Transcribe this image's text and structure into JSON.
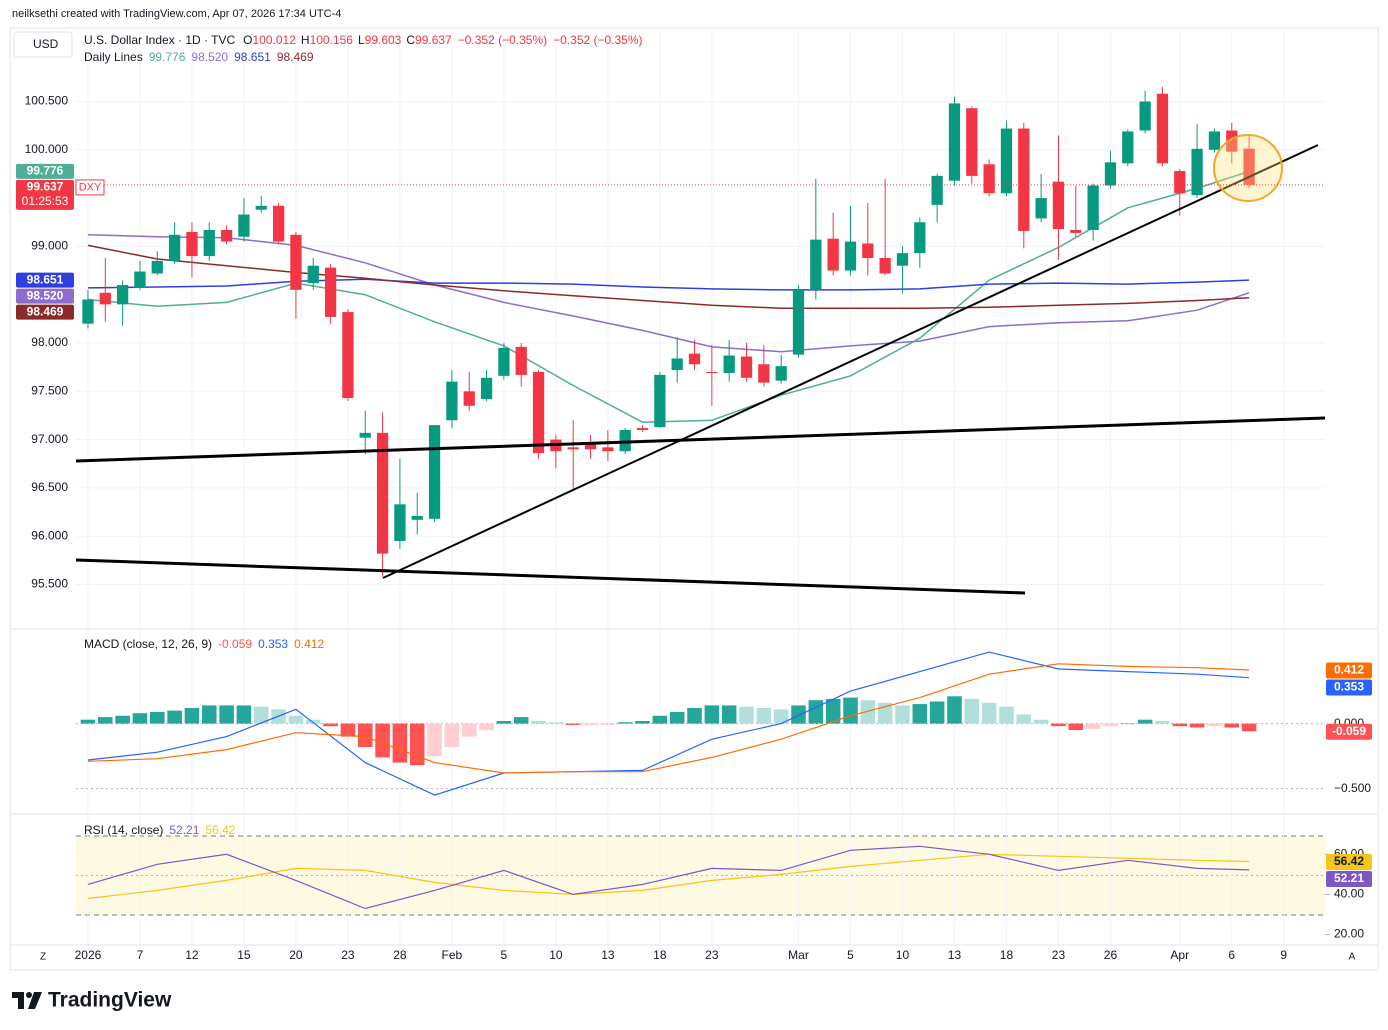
{
  "caption": "neilksethi created with TradingView.com, Apr 07, 2026 17:34 UTC-4",
  "brand": "TradingView",
  "scale_buttons": [
    "Z",
    "A"
  ],
  "chart_data": {
    "type": "candlestick",
    "currency": "USD",
    "title": "U.S. Dollar Index · 1D · TVC",
    "ohlc_letters": [
      "O",
      "H",
      "L",
      "C"
    ],
    "change": [
      "−0.352 (−0.35%)",
      "−0.352 (−0.35%)"
    ],
    "symbol": "DXY",
    "countdown": "01:25:53",
    "up_color": "#089981",
    "down_color": "#f23645",
    "grid": true,
    "xlim": [
      -0.69,
      71.38
    ],
    "xticks": [
      {
        "value": 0,
        "label": "2026"
      },
      {
        "value": 3,
        "label": "7"
      },
      {
        "value": 6,
        "label": "12"
      },
      {
        "value": 9,
        "label": "15"
      },
      {
        "value": 12,
        "label": "20"
      },
      {
        "value": 15,
        "label": "23"
      },
      {
        "value": 18,
        "label": "28"
      },
      {
        "value": 21,
        "label": "Feb"
      },
      {
        "value": 24,
        "label": "5"
      },
      {
        "value": 27,
        "label": "10"
      },
      {
        "value": 30,
        "label": "13"
      },
      {
        "value": 33,
        "label": "18"
      },
      {
        "value": 36,
        "label": "23"
      },
      {
        "value": 41,
        "label": "Mar"
      },
      {
        "value": 44,
        "label": "5"
      },
      {
        "value": 47,
        "label": "10"
      },
      {
        "value": 50,
        "label": "13"
      },
      {
        "value": 53,
        "label": "18"
      },
      {
        "value": 56,
        "label": "23"
      },
      {
        "value": 59,
        "label": "26"
      },
      {
        "value": 63,
        "label": "Apr"
      },
      {
        "value": 66,
        "label": "6"
      },
      {
        "value": 69,
        "label": "9"
      }
    ],
    "ylim": [
      95.05,
      101.24
    ],
    "yticks": [
      {
        "value": 100.5,
        "label": "100.500"
      },
      {
        "value": 100,
        "label": "100.000"
      },
      {
        "value": 99,
        "label": "99.000"
      },
      {
        "value": 98,
        "label": "98.000"
      },
      {
        "value": 97.5,
        "label": "97.500"
      },
      {
        "value": 97,
        "label": "97.000"
      },
      {
        "value": 96.5,
        "label": "96.500"
      },
      {
        "value": 96,
        "label": "96.000"
      },
      {
        "value": 95.5,
        "label": "95.500"
      }
    ],
    "candles": {
      "open": [
        98.2,
        98.52,
        98.4,
        98.57,
        98.72,
        98.85,
        99.15,
        98.9,
        99.17,
        99.1,
        99.38,
        99.42,
        99.12,
        98.62,
        98.78,
        98.32,
        97.02,
        97.07,
        95.95,
        96.17,
        96.18,
        97.2,
        97.5,
        97.42,
        97.66,
        97.96,
        97.7,
        97.0,
        96.92,
        96.95,
        96.92,
        96.88,
        97.12,
        97.13,
        97.72,
        97.89,
        97.7,
        97.69,
        97.86,
        97.78,
        97.61,
        97.88,
        98.55,
        99.08,
        98.75,
        99.03,
        98.88,
        98.8,
        98.93,
        99.43,
        99.68,
        100.43,
        99.85,
        99.55,
        100.22,
        99.29,
        99.67,
        99.17,
        99.17,
        99.63,
        99.86,
        100.2,
        100.58,
        99.78,
        99.53,
        100.0,
        100.2,
        100.012
      ],
      "high": [
        98.55,
        98.88,
        98.65,
        98.85,
        98.95,
        99.25,
        99.25,
        99.25,
        99.22,
        99.5,
        99.52,
        99.45,
        99.15,
        98.88,
        98.82,
        98.35,
        97.3,
        97.28,
        96.8,
        96.45,
        97.15,
        97.72,
        97.7,
        97.72,
        98.0,
        98.0,
        97.72,
        97.05,
        97.2,
        97.05,
        97.1,
        97.12,
        97.15,
        97.7,
        98.06,
        98.03,
        97.98,
        98.03,
        98.0,
        97.98,
        97.88,
        98.6,
        99.7,
        99.35,
        99.42,
        99.45,
        99.7,
        99.0,
        99.3,
        99.75,
        100.55,
        100.45,
        99.9,
        100.3,
        100.28,
        99.75,
        100.15,
        99.63,
        99.65,
        99.99,
        100.21,
        100.61,
        100.65,
        99.8,
        100.27,
        100.22,
        100.28,
        100.156
      ],
      "low": [
        98.15,
        98.22,
        98.18,
        98.55,
        98.7,
        98.82,
        98.68,
        98.85,
        99.02,
        99.05,
        99.35,
        99.02,
        98.25,
        98.55,
        98.2,
        97.4,
        96.85,
        95.58,
        95.87,
        96.02,
        96.15,
        97.12,
        97.3,
        97.4,
        97.62,
        97.55,
        96.8,
        96.7,
        96.48,
        96.8,
        96.78,
        96.85,
        97.08,
        97.12,
        97.59,
        97.72,
        97.35,
        97.6,
        97.6,
        97.55,
        97.58,
        97.85,
        98.45,
        98.7,
        98.7,
        98.7,
        98.7,
        98.52,
        98.78,
        99.25,
        99.63,
        99.65,
        99.52,
        99.52,
        98.98,
        99.25,
        98.86,
        99.1,
        99.06,
        99.6,
        99.83,
        100.17,
        99.83,
        99.32,
        99.5,
        99.97,
        99.86,
        99.603
      ],
      "close": [
        98.45,
        98.4,
        98.6,
        98.74,
        98.85,
        99.12,
        98.9,
        99.17,
        99.05,
        99.33,
        99.42,
        99.05,
        98.55,
        98.8,
        98.27,
        97.43,
        97.07,
        95.82,
        96.33,
        96.21,
        97.15,
        97.6,
        97.35,
        97.64,
        97.95,
        97.67,
        96.86,
        96.88,
        96.9,
        96.9,
        96.88,
        97.1,
        97.1,
        97.67,
        97.84,
        97.78,
        97.69,
        97.87,
        97.64,
        97.59,
        97.76,
        98.55,
        99.07,
        98.75,
        99.05,
        98.88,
        98.72,
        98.93,
        99.25,
        99.73,
        100.48,
        99.73,
        99.55,
        100.22,
        99.16,
        99.5,
        99.18,
        99.14,
        99.63,
        99.87,
        100.19,
        100.5,
        99.86,
        99.55,
        100.01,
        100.19,
        99.98,
        99.637
      ]
    },
    "overlay": {
      "label": "Daily Lines",
      "x": [
        0,
        4,
        8,
        12,
        16,
        20,
        24,
        28,
        32,
        36,
        40,
        44,
        48,
        52,
        56,
        60,
        64,
        67
      ],
      "series": [
        {
          "color": "#4fae98",
          "values": [
            98.45,
            98.38,
            98.42,
            98.62,
            98.5,
            98.22,
            97.97,
            97.56,
            97.18,
            97.2,
            97.46,
            97.66,
            98.05,
            98.65,
            98.99,
            99.4,
            99.6,
            99.776
          ],
          "value_labels": [
            null,
            null,
            null,
            null,
            null,
            null,
            null,
            null,
            null,
            null,
            null,
            null,
            null,
            null,
            null,
            null,
            null,
            "99.776"
          ]
        },
        {
          "color": "#8e6ccf",
          "values": [
            99.12,
            99.1,
            99.09,
            99.01,
            98.83,
            98.6,
            98.42,
            98.28,
            98.13,
            97.96,
            97.91,
            97.97,
            98.02,
            98.17,
            98.21,
            98.23,
            98.34,
            98.52
          ],
          "value_labels": [
            null,
            null,
            null,
            null,
            null,
            null,
            null,
            null,
            null,
            null,
            null,
            null,
            null,
            null,
            null,
            null,
            null,
            "98.520"
          ]
        },
        {
          "color": "#2d3fe0",
          "values": [
            98.57,
            98.58,
            98.59,
            98.64,
            98.66,
            98.62,
            98.62,
            98.61,
            98.58,
            98.56,
            98.55,
            98.55,
            98.56,
            98.61,
            98.62,
            98.61,
            98.63,
            98.651
          ],
          "value_labels": [
            null,
            null,
            null,
            null,
            null,
            null,
            null,
            null,
            null,
            null,
            null,
            null,
            null,
            null,
            null,
            null,
            null,
            "98.651"
          ]
        },
        {
          "color": "#8b2a2a",
          "values": [
            99.01,
            98.87,
            98.8,
            98.73,
            98.67,
            98.6,
            98.54,
            98.49,
            98.44,
            98.39,
            98.36,
            98.36,
            98.36,
            98.37,
            98.39,
            98.41,
            98.44,
            98.469
          ],
          "value_labels": [
            null,
            null,
            null,
            null,
            null,
            null,
            null,
            null,
            null,
            null,
            null,
            null,
            null,
            null,
            null,
            null,
            null,
            "98.469"
          ]
        }
      ]
    },
    "macd": {
      "label": "MACD (close, 12, 26, 9)",
      "ylim": [
        -0.68,
        0.72
      ],
      "yticks": [
        {
          "value": 0,
          "label": "0.000"
        },
        {
          "value": -0.5,
          "label": "−0.500"
        }
      ],
      "histogram": [
        0.03,
        0.05,
        0.06,
        0.08,
        0.09,
        0.1,
        0.12,
        0.14,
        0.14,
        0.14,
        0.13,
        0.11,
        0.06,
        0.03,
        -0.02,
        -0.1,
        -0.18,
        -0.26,
        -0.3,
        -0.32,
        -0.25,
        -0.18,
        -0.1,
        -0.05,
        0.02,
        0.05,
        0.02,
        0.01,
        -0.01,
        -0.01,
        -0.01,
        0.01,
        0.02,
        0.06,
        0.09,
        0.12,
        0.14,
        0.14,
        0.13,
        0.12,
        0.11,
        0.14,
        0.18,
        0.19,
        0.2,
        0.18,
        0.16,
        0.14,
        0.15,
        0.17,
        0.21,
        0.19,
        0.16,
        0.13,
        0.07,
        0.03,
        -0.02,
        -0.05,
        -0.04,
        -0.02,
        0.0,
        0.03,
        0.02,
        -0.02,
        -0.03,
        -0.02,
        -0.03,
        -0.059
      ],
      "histogram_colors": {
        "rise_above": "#26a69a",
        "fall_above": "#b2dfdb",
        "fall_below": "#ff5252",
        "rise_below": "#ffcdd2"
      },
      "x": [
        0,
        4,
        8,
        12,
        16,
        20,
        24,
        28,
        32,
        36,
        40,
        44,
        48,
        52,
        56,
        60,
        64,
        67
      ],
      "macd_line": {
        "color": "#2962ff",
        "values": [
          -0.28,
          -0.22,
          -0.1,
          0.11,
          -0.3,
          -0.55,
          -0.38,
          -0.37,
          -0.36,
          -0.12,
          0.0,
          0.25,
          0.4,
          0.55,
          0.42,
          0.4,
          0.38,
          0.353
        ]
      },
      "signal_line": {
        "color": "#ff6d00",
        "values": [
          -0.29,
          -0.27,
          -0.2,
          -0.07,
          -0.1,
          -0.3,
          -0.38,
          -0.37,
          -0.37,
          -0.26,
          -0.12,
          0.06,
          0.2,
          0.38,
          0.46,
          0.44,
          0.43,
          0.412
        ]
      }
    },
    "rsi": {
      "label": "RSI (14, close)",
      "ylim": [
        14.8,
        79.1
      ],
      "yticks": [
        {
          "value": 20,
          "label": "20.00"
        },
        {
          "value": 40,
          "label": "40.00"
        },
        {
          "value": 60,
          "label": "60.00"
        }
      ],
      "x": [
        0,
        4,
        8,
        12,
        16,
        20,
        24,
        28,
        32,
        36,
        40,
        44,
        48,
        52,
        56,
        60,
        64,
        67
      ],
      "rsi_line": {
        "color": "#7e57c2",
        "values": [
          45,
          55,
          60,
          47,
          33,
          42,
          52,
          40,
          45,
          53,
          52,
          62,
          64,
          60,
          52,
          57,
          53,
          52.21
        ]
      },
      "ma_line": {
        "color": "#f5c518",
        "values": [
          38,
          42,
          47,
          53,
          52,
          46,
          42,
          40,
          42,
          47,
          50,
          54,
          57,
          60,
          59,
          58,
          57,
          56.42
        ]
      }
    }
  }
}
